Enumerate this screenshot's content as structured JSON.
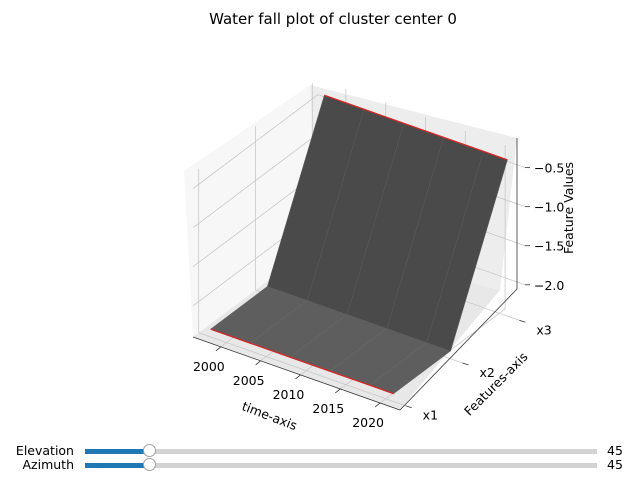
{
  "chart_data": {
    "type": "surface",
    "title": "Water fall plot of cluster center 0",
    "xlabel": "time-axis",
    "ylabel": "Features-axis",
    "zlabel": "Feature Values",
    "x_ticks": [
      "2000",
      "2005",
      "2010",
      "2015",
      "2020"
    ],
    "y_ticks": [
      "x1",
      "x2",
      "x3"
    ],
    "z_ticks": [
      "−0.5",
      "−1.0",
      "−1.5",
      "−2.0"
    ],
    "x": [
      1998,
      2003,
      2008,
      2013,
      2018,
      2021
    ],
    "features": [
      "x1",
      "x2",
      "x3"
    ],
    "series": [
      {
        "name": "x1",
        "values": [
          -2.3,
          -2.3,
          -2.3,
          -2.3,
          -2.3,
          -2.3
        ]
      },
      {
        "name": "x2",
        "values": [
          -2.3,
          -2.3,
          -2.3,
          -2.3,
          -2.3,
          -2.3
        ]
      },
      {
        "name": "x3",
        "values": [
          -0.4,
          -0.4,
          -0.4,
          -0.4,
          -0.4,
          -0.4
        ]
      }
    ],
    "xlim": [
      1996.5,
      2022.5
    ],
    "ylim": [
      0.9,
      3.1
    ],
    "zlim": [
      -2.4,
      -0.3
    ],
    "grid": true,
    "colors": {
      "surface": "#4a4a4a",
      "edge_line": "#d62728",
      "pane": "#f2f2f2"
    }
  },
  "controls": {
    "elevation": {
      "label": "Elevation",
      "value": 45,
      "min": 0,
      "max": 360,
      "display": "45"
    },
    "azimuth": {
      "label": "Azimuth",
      "value": 45,
      "min": 0,
      "max": 360,
      "display": "45"
    },
    "accent": "#1f77b4"
  }
}
